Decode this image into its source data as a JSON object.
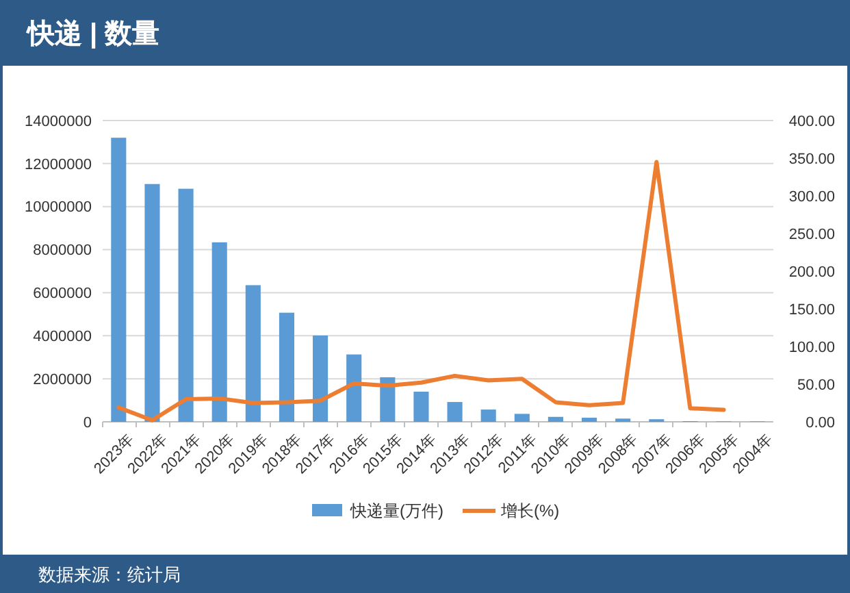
{
  "chart_data": {
    "type": "bar",
    "title": "快递 | 数量",
    "categories": [
      "2023年",
      "2022年",
      "2021年",
      "2020年",
      "2019年",
      "2018年",
      "2017年",
      "2016年",
      "2015年",
      "2014年",
      "2013年",
      "2012年",
      "2011年",
      "2010年",
      "2009年",
      "2008年",
      "2007年",
      "2006年",
      "2005年",
      "2004年"
    ],
    "series": [
      {
        "name": "快递量(万件)",
        "color": "#5b9bd5",
        "values": [
          13200000,
          11050000,
          10830000,
          8340000,
          6350000,
          5070000,
          4010000,
          3130000,
          2070000,
          1400000,
          920000,
          570000,
          370000,
          230000,
          190000,
          150000,
          120000,
          30000,
          20000,
          20000
        ]
      },
      {
        "name": "增长(%)",
        "type": "line",
        "axis": "y2",
        "color": "#ed7d31",
        "values": [
          19,
          2,
          30,
          31,
          25,
          26,
          28,
          51,
          48,
          52,
          61,
          55,
          57,
          26,
          22,
          25,
          345,
          18,
          16,
          null
        ]
      }
    ],
    "ylim": [
      0,
      14000000
    ],
    "yticks": [
      0,
      2000000,
      4000000,
      6000000,
      8000000,
      10000000,
      12000000,
      14000000
    ],
    "y2lim": [
      0,
      400
    ],
    "y2ticks": [
      {
        "value": 0,
        "label": "0.00"
      },
      {
        "value": 50,
        "label": "50.00"
      },
      {
        "value": 100,
        "label": "100.00"
      },
      {
        "value": 150,
        "label": "150.00"
      },
      {
        "value": 200,
        "label": "200.00"
      },
      {
        "value": 250,
        "label": "250.00"
      },
      {
        "value": 300,
        "label": "300.00"
      },
      {
        "value": 350,
        "label": "350.00"
      },
      {
        "value": 400,
        "label": "400.00"
      }
    ],
    "grid": "y",
    "legend": "bottom",
    "annotations": [
      "数据来源：统计局"
    ]
  }
}
